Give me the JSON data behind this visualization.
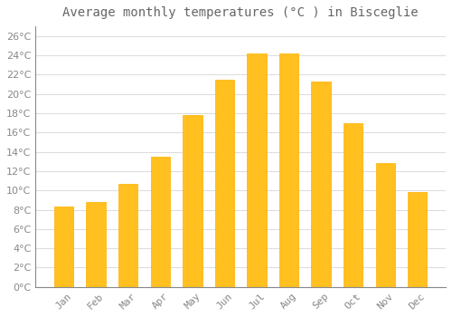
{
  "title": "Average monthly temperatures (°C ) in Bisceglie",
  "months": [
    "Jan",
    "Feb",
    "Mar",
    "Apr",
    "May",
    "Jun",
    "Jul",
    "Aug",
    "Sep",
    "Oct",
    "Nov",
    "Dec"
  ],
  "values": [
    8.3,
    8.8,
    10.7,
    13.5,
    17.8,
    21.5,
    24.2,
    24.2,
    21.3,
    17.0,
    12.8,
    9.8
  ],
  "bar_color": "#FFC020",
  "bar_edge_color": "#FFB000",
  "background_color": "#FFFFFF",
  "grid_color": "#DDDDDD",
  "text_color": "#888888",
  "title_color": "#666666",
  "ylim": [
    0,
    27
  ],
  "yticks": [
    0,
    2,
    4,
    6,
    8,
    10,
    12,
    14,
    16,
    18,
    20,
    22,
    24,
    26
  ],
  "title_fontsize": 10,
  "tick_fontsize": 8,
  "bar_width": 0.6
}
